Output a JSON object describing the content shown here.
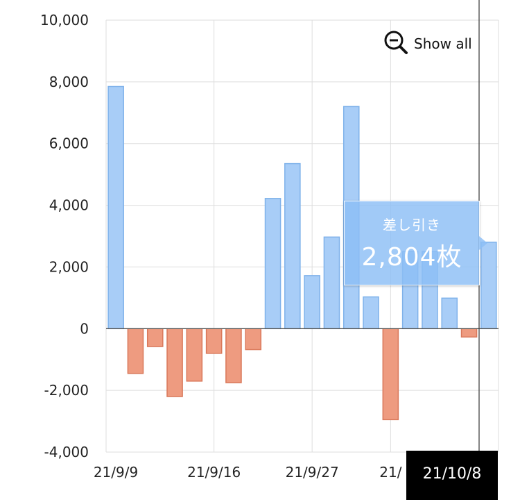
{
  "chart_data": {
    "type": "bar",
    "y_ticks": [
      "10,000",
      "8,000",
      "6,000",
      "4,000",
      "2,000",
      "0",
      "-2,000",
      "-4,000"
    ],
    "y_tick_values": [
      10000,
      8000,
      6000,
      4000,
      2000,
      0,
      -2000,
      -4000
    ],
    "ylim": [
      -4000,
      10000
    ],
    "x_tick_labels": [
      {
        "label": "21/9/9",
        "index": 0
      },
      {
        "label": "21/9/16",
        "index": 5
      },
      {
        "label": "21/9/27",
        "index": 10
      },
      {
        "label": "21/",
        "index": 14
      }
    ],
    "values": [
      7850,
      -1450,
      -580,
      -2200,
      -1700,
      -800,
      -1750,
      -680,
      4220,
      5350,
      1720,
      2970,
      7200,
      1030,
      -2950,
      2500,
      2500,
      990,
      -270,
      2804
    ],
    "grid": true,
    "positive_color": "#a8cdf7",
    "negative_color": "#ee9b80"
  },
  "tooltip": {
    "label": "差し引き",
    "value": "2,804枚"
  },
  "zoom": {
    "label": "Show all",
    "icon": "zoom-out-icon"
  },
  "cursor": {
    "date_label": "21/10/8"
  }
}
